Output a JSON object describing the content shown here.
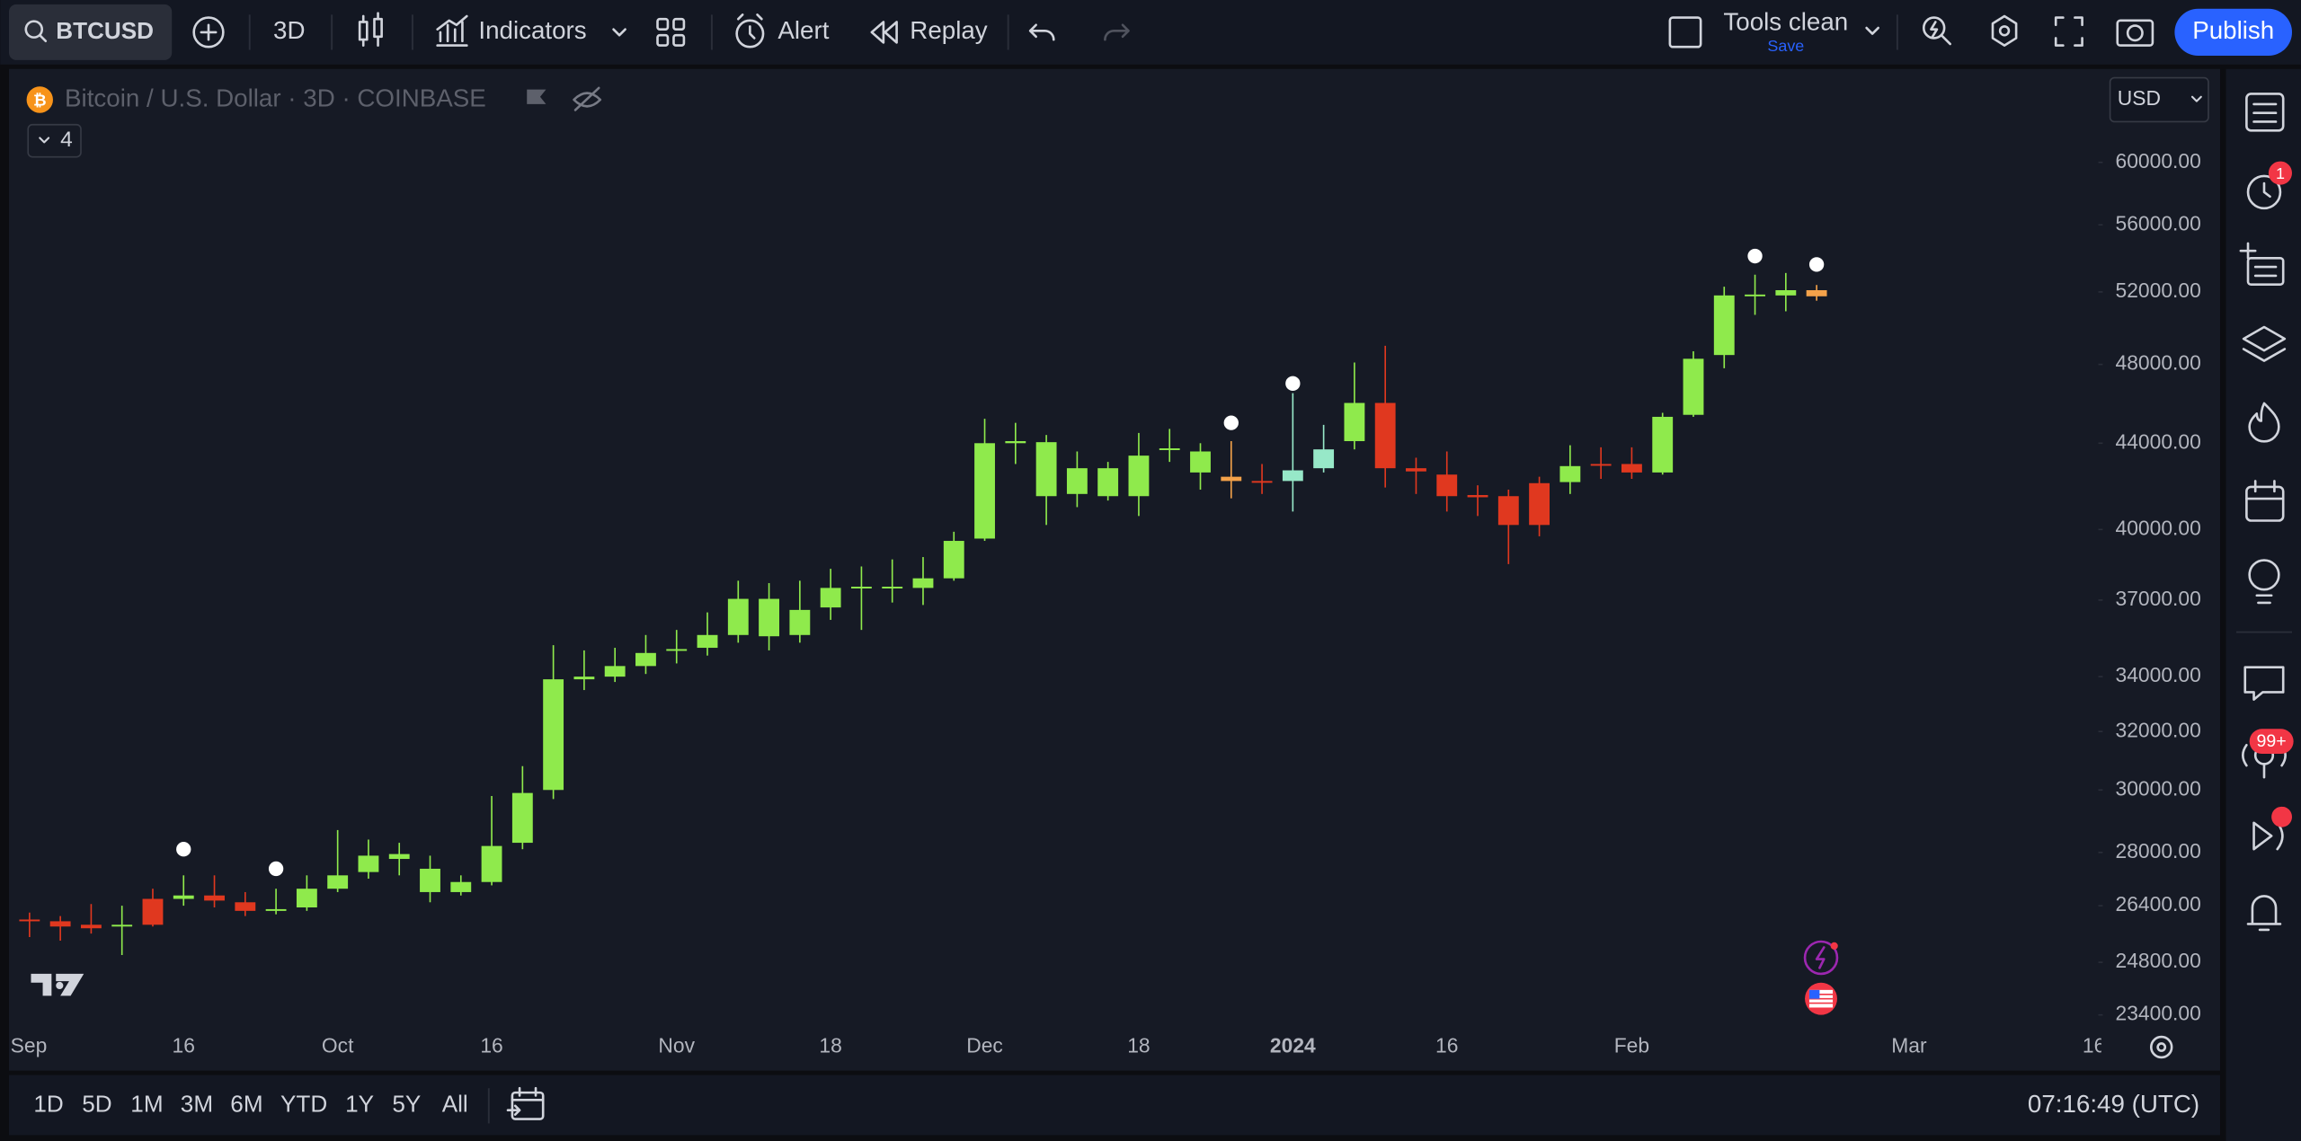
{
  "toolbar": {
    "symbol": "BTCUSD",
    "interval": "3D",
    "indicators": "Indicators",
    "alert": "Alert",
    "replay": "Replay",
    "layout_name": "Tools clean",
    "save": "Save",
    "publish": "Publish"
  },
  "legend": {
    "symbol_title": "Bitcoin / U.S. Dollar · 3D · COINBASE",
    "collapse_count": "4"
  },
  "currency": "USD",
  "badges": {
    "alerts": "1",
    "notifications": "99+"
  },
  "bottom_bar": {
    "ranges": [
      "1D",
      "5D",
      "1M",
      "3M",
      "6M",
      "YTD",
      "1Y",
      "5Y",
      "All"
    ],
    "clock": "07:16:49 (UTC)"
  },
  "chart_data": {
    "type": "candlestick",
    "categories": [
      "Sep",
      null,
      null,
      null,
      null,
      "16",
      null,
      null,
      null,
      null,
      "Oct",
      null,
      null,
      null,
      null,
      "16",
      null,
      null,
      null,
      null,
      null,
      "Nov",
      null,
      null,
      null,
      null,
      "18",
      null,
      null,
      null,
      null,
      "Dec",
      null,
      null,
      null,
      null,
      "18",
      null,
      null,
      null,
      null,
      "2024",
      null,
      null,
      null,
      null,
      "16",
      null,
      null,
      null,
      null,
      null,
      "Feb",
      null,
      null,
      null,
      null,
      null,
      null,
      null,
      null,
      "Mar",
      null,
      null,
      null,
      null,
      null,
      "16"
    ],
    "open": [
      26000,
      25950,
      25850,
      25800,
      26600,
      26600,
      26700,
      26500,
      26250,
      26350,
      26900,
      27400,
      27800,
      26800,
      26800,
      27100,
      28300,
      30000,
      33900,
      34000,
      34400,
      35000,
      35100,
      35600,
      35550,
      35600,
      36700,
      37500,
      37500,
      37500,
      37900,
      39600,
      44000,
      41500,
      41600,
      41500,
      41500,
      43700,
      42600,
      42400,
      42200,
      42200,
      42800,
      44100,
      46000,
      42800,
      42500,
      41550,
      41500,
      42100,
      42150,
      43000,
      43000,
      42600,
      45400,
      48500,
      51800,
      51800,
      52100,
      null,
      null,
      null,
      null,
      null,
      null,
      null,
      null,
      null
    ],
    "high": [
      26200,
      26100,
      26450,
      26400,
      26900,
      27300,
      27300,
      26800,
      26900,
      27300,
      28700,
      28400,
      28300,
      27900,
      27300,
      29800,
      30800,
      35200,
      35000,
      35100,
      35600,
      35800,
      36500,
      37800,
      37700,
      37800,
      38300,
      38400,
      38700,
      38800,
      39900,
      45200,
      45000,
      44400,
      43600,
      43100,
      44500,
      44700,
      44000,
      44100,
      43000,
      46500,
      44900,
      48100,
      49000,
      43300,
      43600,
      42000,
      41800,
      42400,
      43900,
      43800,
      43800,
      45500,
      48700,
      52300,
      53000,
      53100,
      52400,
      null,
      null,
      null,
      null,
      null,
      null,
      null,
      null,
      null
    ],
    "low": [
      25500,
      25400,
      25600,
      25000,
      25800,
      26400,
      26350,
      26100,
      26150,
      26250,
      26800,
      27200,
      27300,
      26500,
      26700,
      27000,
      28100,
      29700,
      33500,
      33800,
      34100,
      34500,
      34800,
      35300,
      35000,
      35300,
      36200,
      35800,
      36900,
      36800,
      37800,
      39500,
      43000,
      40200,
      41000,
      41300,
      40600,
      43100,
      41800,
      41400,
      41600,
      40800,
      42600,
      43700,
      41900,
      41600,
      40800,
      40600,
      38500,
      39700,
      41600,
      42300,
      42300,
      42500,
      45300,
      47800,
      50700,
      50900,
      51500,
      null,
      null,
      null,
      null,
      null,
      null,
      null,
      null,
      null
    ],
    "close": [
      25950,
      25800,
      25750,
      25850,
      25850,
      26700,
      26550,
      26250,
      26300,
      26900,
      27300,
      27900,
      27950,
      27500,
      27100,
      28200,
      29900,
      33900,
      34000,
      34400,
      34900,
      35050,
      35600,
      37050,
      37050,
      36600,
      37500,
      37550,
      37550,
      37900,
      39500,
      44000,
      44100,
      44050,
      42800,
      42800,
      43400,
      43750,
      43600,
      42200,
      42150,
      42700,
      43700,
      46000,
      42800,
      42650,
      41500,
      41450,
      40200,
      40200,
      42900,
      42950,
      42600,
      45300,
      48300,
      51800,
      51850,
      52100,
      51750,
      null,
      null,
      null,
      null,
      null,
      null,
      null,
      null,
      null
    ],
    "up_color": "#8fea4c",
    "down_color": "#e0381f",
    "colors": [
      null,
      null,
      null,
      null,
      null,
      null,
      null,
      null,
      null,
      null,
      null,
      null,
      null,
      null,
      null,
      null,
      null,
      null,
      null,
      null,
      null,
      null,
      null,
      null,
      null,
      null,
      null,
      null,
      null,
      null,
      null,
      null,
      null,
      null,
      null,
      null,
      null,
      null,
      null,
      "#f4a24a",
      null,
      "#97e8c8",
      "#97e8c8",
      null,
      null,
      null,
      null,
      null,
      null,
      null,
      null,
      null,
      null,
      null,
      null,
      null,
      null,
      null,
      "#f4a24a",
      null,
      null,
      null,
      null,
      null,
      null,
      null,
      null,
      null
    ],
    "markers": {
      "color": "#ffffff",
      "values": [
        null,
        null,
        null,
        null,
        null,
        28100,
        null,
        null,
        27500,
        null,
        null,
        null,
        null,
        null,
        null,
        null,
        null,
        null,
        null,
        null,
        null,
        null,
        null,
        null,
        null,
        null,
        null,
        null,
        null,
        null,
        null,
        null,
        null,
        null,
        null,
        null,
        null,
        null,
        null,
        45000,
        null,
        47000,
        null,
        null,
        null,
        null,
        null,
        null,
        null,
        null,
        null,
        null,
        null,
        null,
        null,
        null,
        54100,
        null,
        53600,
        null,
        null,
        null,
        null,
        null,
        null,
        null,
        null,
        null
      ]
    },
    "log_scale": true,
    "grid": false,
    "ylim": [
      23100,
      66200
    ],
    "yticks": [
      {
        "value": 23400,
        "label": "23400.00"
      },
      {
        "value": 24800,
        "label": "24800.00"
      },
      {
        "value": 26400,
        "label": "26400.00"
      },
      {
        "value": 28000,
        "label": "28000.00"
      },
      {
        "value": 30000,
        "label": "30000.00"
      },
      {
        "value": 32000,
        "label": "32000.00"
      },
      {
        "value": 34000,
        "label": "34000.00"
      },
      {
        "value": 37000,
        "label": "37000.00"
      },
      {
        "value": 40000,
        "label": "40000.00"
      },
      {
        "value": 44000,
        "label": "44000.00"
      },
      {
        "value": 48000,
        "label": "48000.00"
      },
      {
        "value": 52000,
        "label": "52000.00"
      },
      {
        "value": 56000,
        "label": "56000.00"
      },
      {
        "value": 60000,
        "label": "60000.00"
      }
    ]
  }
}
